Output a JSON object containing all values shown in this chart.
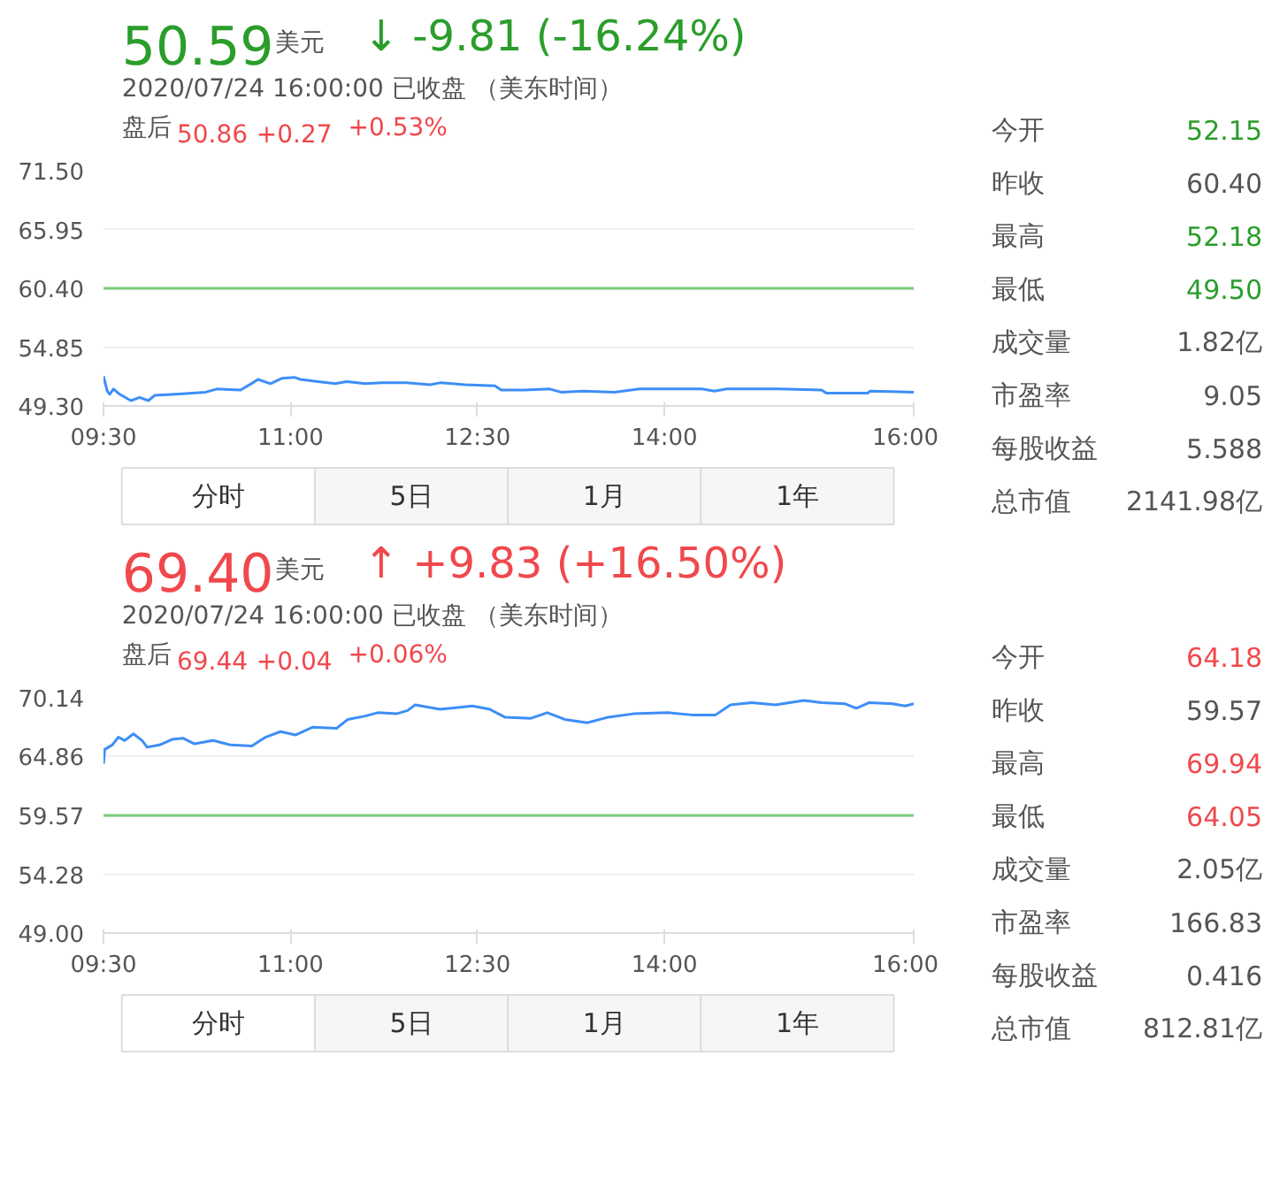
{
  "chart_data": [
    {
      "type": "line",
      "title": "50.59",
      "subtitle": "2020/07/24 16:00:00  已收盘 （美东时间）",
      "annotations": [
        "美元",
        "↓ -9.81 (-16.24%)",
        "盘后",
        "50.86",
        "+0.27",
        "+0.53%",
        "分时",
        "5日",
        "1月",
        "1年"
      ],
      "series": [
        {
          "color": "#3d8ef8",
          "x": [
            9.5,
            9.53,
            9.55,
            9.58,
            9.63,
            9.72,
            9.79,
            9.86,
            9.91,
            10.08,
            10.32,
            10.41,
            10.6,
            10.7,
            10.74,
            10.84,
            10.93,
            11.03,
            11.08,
            11.22,
            11.36,
            11.45,
            11.6,
            11.74,
            11.93,
            12.12,
            12.21,
            12.4,
            12.64,
            12.69,
            12.88,
            13.08,
            13.17,
            13.35,
            13.6,
            13.8,
            14.3,
            14.4,
            14.5,
            14.92,
            15.26,
            15.3,
            15.63,
            15.65,
            16.0
          ],
          "values": [
            52.1,
            50.7,
            50.4,
            50.9,
            50.4,
            49.8,
            50.1,
            49.8,
            50.3,
            50.4,
            50.6,
            50.9,
            50.8,
            51.5,
            51.8,
            51.4,
            51.9,
            52.0,
            51.8,
            51.6,
            51.4,
            51.6,
            51.4,
            51.5,
            51.5,
            51.3,
            51.5,
            51.3,
            51.2,
            50.8,
            50.8,
            50.9,
            50.6,
            50.7,
            50.6,
            50.9,
            50.9,
            50.7,
            50.9,
            50.9,
            50.8,
            50.5,
            50.5,
            50.7,
            50.6
          ]
        }
      ],
      "xlim": [
        9.5,
        16
      ],
      "ylim": [
        49.3,
        71.5
      ],
      "xticks": [
        {
          "value": 9.5,
          "label": "09:30"
        },
        {
          "value": 11,
          "label": "11:00"
        },
        {
          "value": 12.5,
          "label": "12:30"
        },
        {
          "value": 14,
          "label": "14:00"
        },
        {
          "value": 16,
          "label": "16:00"
        }
      ],
      "yticks": [
        {
          "value": 49.3,
          "label": "49.30"
        },
        {
          "value": 54.85,
          "label": "54.85"
        },
        {
          "value": 60.4,
          "label": "60.40"
        },
        {
          "value": 65.95,
          "label": "65.95"
        },
        {
          "value": 71.5,
          "label": "71.50"
        }
      ],
      "ref_lines": [
        {
          "axis": "y",
          "value": 60.4,
          "color": "#7ccb7c"
        }
      ],
      "grid": "y",
      "marker": "none",
      "line_style": "solid"
    },
    {
      "type": "other",
      "categories": [
        "今开",
        "昨收",
        "最高",
        "最低",
        "成交量",
        "市盈率",
        "每股收益",
        "总市值"
      ],
      "value_labels": [
        "52.15",
        "60.40",
        "52.18",
        "49.50",
        "1.82亿",
        "9.05",
        "5.588",
        "2141.98亿"
      ]
    },
    {
      "type": "line",
      "title": "69.40",
      "subtitle": "2020/07/24 16:00:00  已收盘 （美东时间）",
      "annotations": [
        "美元",
        "↑ +9.83 (+16.50%)",
        "盘后",
        "69.44",
        "+0.04",
        "+0.06%",
        "分时",
        "5日",
        "1月",
        "1年"
      ],
      "series": [
        {
          "color": "#3d8ef8",
          "x": [
            9.5,
            9.51,
            9.57,
            9.62,
            9.67,
            9.74,
            9.81,
            9.85,
            9.95,
            10.05,
            10.14,
            10.23,
            10.38,
            10.52,
            10.69,
            10.8,
            10.92,
            11.04,
            11.18,
            11.37,
            11.46,
            11.6,
            11.7,
            11.85,
            11.94,
            12.0,
            12.2,
            12.46,
            12.6,
            12.72,
            12.93,
            13.06,
            13.2,
            13.38,
            13.55,
            13.75,
            14.03,
            14.22,
            14.41,
            14.53,
            14.7,
            14.89,
            15.12,
            15.26,
            15.45,
            15.54,
            15.64,
            15.83,
            15.93,
            16.0
          ],
          "values": [
            64.2,
            65.5,
            65.9,
            66.6,
            66.3,
            66.9,
            66.3,
            65.7,
            65.9,
            66.4,
            66.5,
            66.0,
            66.3,
            65.9,
            65.8,
            66.6,
            67.1,
            66.8,
            67.5,
            67.4,
            68.2,
            68.5,
            68.8,
            68.7,
            69.0,
            69.5,
            69.1,
            69.4,
            69.1,
            68.4,
            68.3,
            68.8,
            68.2,
            67.9,
            68.4,
            68.7,
            68.8,
            68.6,
            68.6,
            69.5,
            69.7,
            69.5,
            69.9,
            69.7,
            69.6,
            69.2,
            69.7,
            69.6,
            69.4,
            69.6
          ]
        }
      ],
      "xlim": [
        9.5,
        16
      ],
      "ylim": [
        49.0,
        70.14
      ],
      "xticks": [
        {
          "value": 9.5,
          "label": "09:30"
        },
        {
          "value": 11,
          "label": "11:00"
        },
        {
          "value": 12.5,
          "label": "12:30"
        },
        {
          "value": 14,
          "label": "14:00"
        },
        {
          "value": 16,
          "label": "16:00"
        }
      ],
      "yticks": [
        {
          "value": 49.0,
          "label": "49.00"
        },
        {
          "value": 54.28,
          "label": "54.28"
        },
        {
          "value": 59.57,
          "label": "59.57"
        },
        {
          "value": 64.86,
          "label": "64.86"
        },
        {
          "value": 70.14,
          "label": "70.14"
        }
      ],
      "ref_lines": [
        {
          "axis": "y",
          "value": 59.57,
          "color": "#7ccb7c"
        }
      ],
      "grid": "y",
      "marker": "none",
      "line_style": "solid"
    },
    {
      "type": "other",
      "categories": [
        "今开",
        "昨收",
        "最高",
        "最低",
        "成交量",
        "市盈率",
        "每股收益",
        "总市值"
      ],
      "value_labels": [
        "64.18",
        "59.57",
        "69.94",
        "64.05",
        "2.05亿",
        "166.83",
        "0.416",
        "812.81亿"
      ]
    }
  ]
}
